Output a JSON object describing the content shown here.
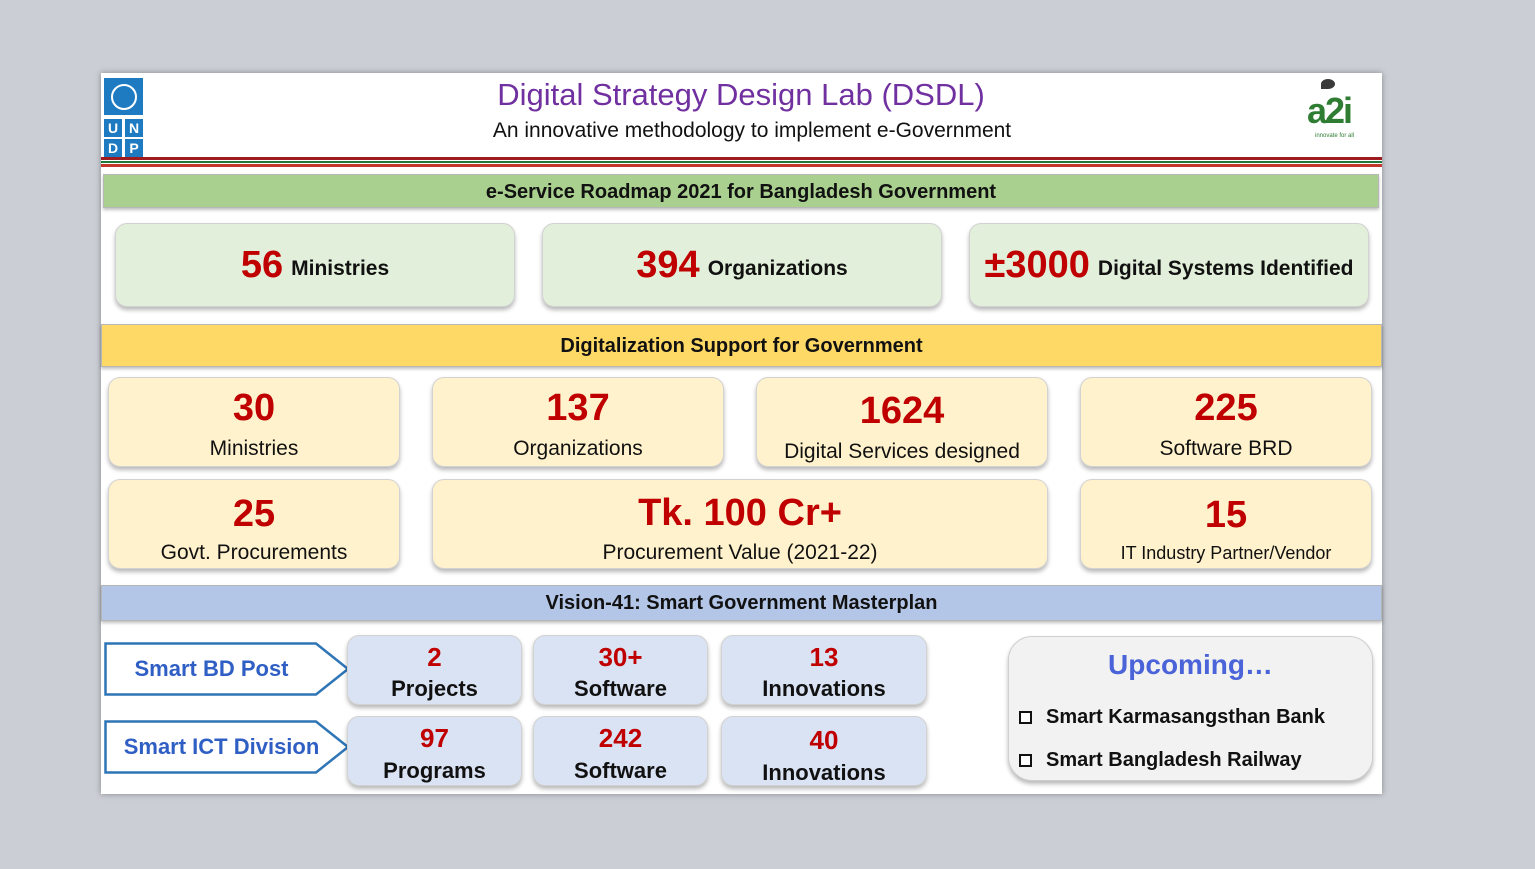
{
  "header": {
    "title": "Digital Strategy Design Lab (DSDL)",
    "subtitle": "An innovative methodology to implement e-Government",
    "undp_logo_letters": [
      "U",
      "N",
      "D",
      "P"
    ],
    "a2i_logo_text": "a2i",
    "a2i_tagline": "innovate for all"
  },
  "roadmap": {
    "bar_label": "e-Service Roadmap 2021 for Bangladesh Government",
    "cards": [
      {
        "value": "56",
        "label": "Ministries"
      },
      {
        "value": "394",
        "label": "Organizations"
      },
      {
        "value": "±3000",
        "label": "Digital Systems Identified"
      }
    ]
  },
  "support": {
    "bar_label": "Digitalization Support for Government",
    "cards": [
      {
        "value": "30",
        "label": "Ministries"
      },
      {
        "value": "137",
        "label": "Organizations"
      },
      {
        "value": "1624",
        "label": "Digital Services designed"
      },
      {
        "value": "225",
        "label": "Software BRD"
      },
      {
        "value": "25",
        "label": "Govt. Procurements"
      },
      {
        "value": "Tk. 100 Cr+",
        "label": "Procurement Value (2021-22)"
      },
      {
        "value": "15",
        "label": "IT Industry  Partner/Vendor"
      }
    ]
  },
  "vision": {
    "bar_label": "Vision-41: Smart Government Masterplan",
    "rows": [
      {
        "name": "Smart  BD Post",
        "items": [
          {
            "value": "2",
            "label": "Projects"
          },
          {
            "value": "30+",
            "label": "Software"
          },
          {
            "value": "13",
            "label": "Innovations"
          }
        ]
      },
      {
        "name": "Smart ICT Division",
        "items": [
          {
            "value": "97",
            "label": "Programs"
          },
          {
            "value": "242",
            "label": "Software"
          },
          {
            "value": "40",
            "label": "Innovations"
          }
        ]
      }
    ],
    "upcoming": {
      "title": "Upcoming…",
      "items": [
        "Smart Karmasangsthan Bank",
        "Smart Bangladesh Railway"
      ]
    }
  },
  "colors": {
    "title": "#7030a0",
    "accent_red": "#c00000",
    "roadmap_bar": "#a9d08e",
    "support_bar": "#ffd966",
    "vision_bar": "#b4c6e7",
    "arrow_text": "#2f5fc4"
  }
}
